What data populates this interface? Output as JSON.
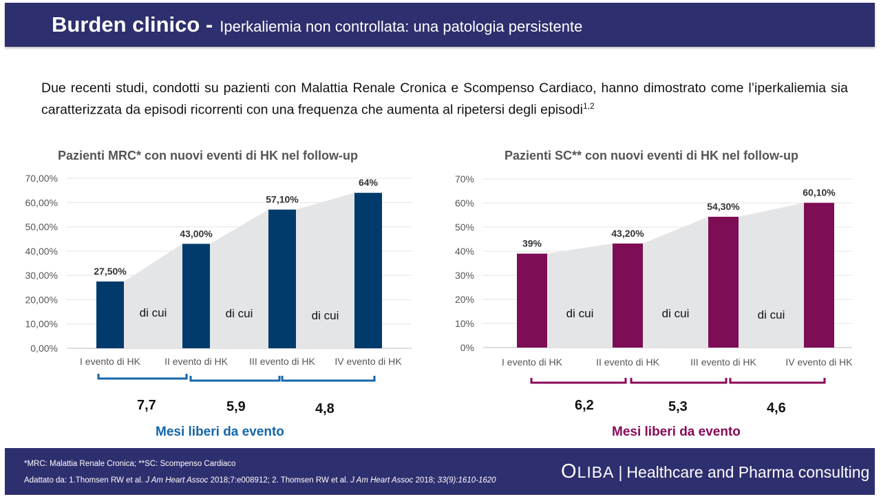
{
  "header": {
    "title_bold": "Burden clinico -",
    "title_light": "Iperkaliemia non controllata: una patologia persistente"
  },
  "intro": {
    "text": "Due recenti studi, condotti su pazienti con Malattia Renale Cronica e Scompenso Cardiaco, hanno dimostrato come l’iperkaliemia sia caratterizzata da episodi ricorrenti con una frequenza che aumenta al ripetersi degli episodi",
    "refs": "1,2"
  },
  "colors": {
    "header_bg": "#2e2f6e",
    "mrc_bar": "#003b6b",
    "sc_bar": "#7d0d54",
    "band": "#e4e5e7",
    "mrc_text": "#1566a8",
    "sc_text": "#8a0a58"
  },
  "chart_data": [
    {
      "type": "bar",
      "title": "Pazienti MRC* con nuovi eventi di HK nel follow-up",
      "categories": [
        "I evento di HK",
        "II evento di HK",
        "III evento di HK",
        "IV evento di HK"
      ],
      "values": [
        27.5,
        43.0,
        57.1,
        64.0
      ],
      "data_labels": [
        "27,50%",
        "43,00%",
        "57,10%",
        "64%"
      ],
      "yticks": [
        "0,00%",
        "10,00%",
        "20,00%",
        "30,00%",
        "40,00%",
        "50,00%",
        "60,00%",
        "70,00%"
      ],
      "ylim": [
        0,
        70
      ],
      "grid": true,
      "band_labels": [
        "di cui",
        "di cui",
        "di cui"
      ],
      "brace_values": [
        "7,7",
        "5,9",
        "4,8"
      ],
      "brace_caption": "Mesi liberi da evento"
    },
    {
      "type": "bar",
      "title": "Pazienti SC** con nuovi eventi di HK nel follow-up",
      "categories": [
        "I evento di HK",
        "II evento di HK",
        "III evento di HK",
        "IV evento di HK"
      ],
      "values": [
        39.0,
        43.2,
        54.3,
        60.1
      ],
      "data_labels": [
        "39%",
        "43,20%",
        "54,30%",
        "60,10%"
      ],
      "yticks": [
        "0%",
        "10%",
        "20%",
        "30%",
        "40%",
        "50%",
        "60%",
        "70%"
      ],
      "ylim": [
        0,
        70
      ],
      "grid": true,
      "band_labels": [
        "di cui",
        "di cui",
        "di cui"
      ],
      "brace_values": [
        "6,2",
        "5,3",
        "4,6"
      ],
      "brace_caption": "Mesi liberi da evento"
    }
  ],
  "footer": {
    "note": "*MRC: Malattia Renale Cronica; **SC: Scompenso Cardiaco",
    "source_pre": "Adattato da: 1.Thomsen RW et al.",
    "journal1": "J Am Heart Assoc",
    "source_mid1": "2018;7:e008912; 2. Thomsen RW et al.",
    "journal2": "J Am Heart Assoc",
    "source_mid2": "2018;",
    "source_end": "33(9):1610-1620",
    "brand_initial": "O",
    "brand_rest": "LIBA",
    "brand_sep": "|",
    "brand_tagline": "Healthcare and Pharma consulting"
  }
}
